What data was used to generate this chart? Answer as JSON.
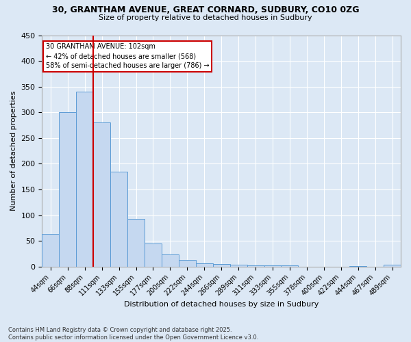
{
  "title_line1": "30, GRANTHAM AVENUE, GREAT CORNARD, SUDBURY, CO10 0ZG",
  "title_line2": "Size of property relative to detached houses in Sudbury",
  "xlabel": "Distribution of detached houses by size in Sudbury",
  "ylabel": "Number of detached properties",
  "bar_labels": [
    "44sqm",
    "66sqm",
    "88sqm",
    "111sqm",
    "133sqm",
    "155sqm",
    "177sqm",
    "200sqm",
    "222sqm",
    "244sqm",
    "266sqm",
    "289sqm",
    "311sqm",
    "333sqm",
    "355sqm",
    "378sqm",
    "400sqm",
    "422sqm",
    "444sqm",
    "467sqm",
    "489sqm"
  ],
  "bar_values": [
    63,
    300,
    340,
    280,
    185,
    93,
    45,
    23,
    13,
    6,
    5,
    3,
    2,
    2,
    2,
    0,
    0,
    0,
    1,
    0,
    3
  ],
  "bar_color": "#c5d8f0",
  "bar_edge_color": "#5b9bd5",
  "background_color": "#dce8f5",
  "grid_color": "#ffffff",
  "property_line_x": 2.5,
  "annotation_text_line1": "30 GRANTHAM AVENUE: 102sqm",
  "annotation_text_line2": "← 42% of detached houses are smaller (568)",
  "annotation_text_line3": "58% of semi-detached houses are larger (786) →",
  "annotation_box_color": "#ffffff",
  "annotation_border_color": "#cc0000",
  "vline_color": "#cc0000",
  "ylim": [
    0,
    450
  ],
  "yticks": [
    0,
    50,
    100,
    150,
    200,
    250,
    300,
    350,
    400,
    450
  ],
  "footer_line1": "Contains HM Land Registry data © Crown copyright and database right 2025.",
  "footer_line2": "Contains public sector information licensed under the Open Government Licence v3.0."
}
